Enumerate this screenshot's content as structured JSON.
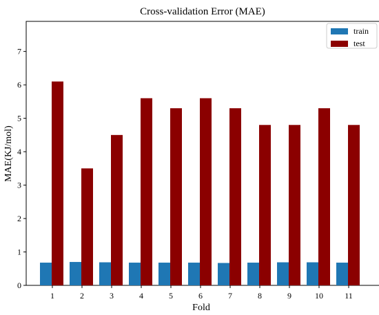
{
  "chart_data": {
    "type": "bar",
    "title": "Cross-validation Error (MAE)",
    "xlabel": "Fold",
    "ylabel": "MAE(KJ/mol)",
    "categories": [
      "1",
      "2",
      "3",
      "4",
      "5",
      "6",
      "7",
      "8",
      "9",
      "10",
      "11"
    ],
    "series": [
      {
        "name": "train",
        "color": "#1f77b4",
        "values": [
          0.68,
          0.7,
          0.69,
          0.68,
          0.68,
          0.68,
          0.67,
          0.68,
          0.69,
          0.69,
          0.68
        ]
      },
      {
        "name": "test",
        "color": "#8b0000",
        "values": [
          6.1,
          3.5,
          4.5,
          5.6,
          5.3,
          5.6,
          5.3,
          4.8,
          4.8,
          5.3,
          4.8
        ]
      }
    ],
    "ylim": [
      0,
      7.9
    ],
    "yticks": [
      0,
      1,
      2,
      3,
      4,
      5,
      6,
      7
    ],
    "grid": false,
    "legend_position": "top-right"
  }
}
